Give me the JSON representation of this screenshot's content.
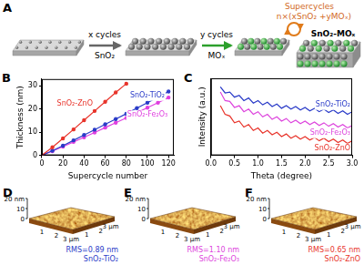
{
  "diagram": {
    "label": "A",
    "steps": [
      {
        "top": "x cycles",
        "bottom": "SnO₂"
      },
      {
        "top": "y cycles",
        "bottom": "MOₓ"
      }
    ],
    "loop": {
      "title": "Supercycles",
      "formula": "n×(xSnO₂ +yMOₓ)"
    },
    "product": "SnO₂-MOₓ"
  },
  "chart_data": [
    {
      "panel": "B",
      "type": "line",
      "x_label": "Supercycle number",
      "y_label": "Thickness (nm)",
      "xlim": [
        0,
        125
      ],
      "xticks": [
        0,
        20,
        40,
        60,
        80,
        100,
        120
      ],
      "ylim": [
        0,
        33
      ],
      "yticks": [
        0,
        10,
        20,
        30
      ],
      "grid": false,
      "series": [
        {
          "name": "SnO₂-ZnO",
          "color": "#e8342b",
          "marker": "circle",
          "x": [
            0,
            10,
            20,
            30,
            40,
            50,
            60,
            70,
            80
          ],
          "values": [
            0,
            3.5,
            7.3,
            11.2,
            15.2,
            19.2,
            23.2,
            27.2,
            31
          ]
        },
        {
          "name": "SnO₂-TiO₂",
          "color": "#2a3bc8",
          "marker": "circle",
          "x": [
            0,
            10,
            20,
            30,
            40,
            50,
            60,
            70,
            80,
            90,
            100,
            110,
            120
          ],
          "values": [
            0,
            2,
            4.2,
            6.5,
            8.8,
            11.1,
            13.4,
            15.7,
            18,
            20.4,
            22.8,
            25.2,
            27.6
          ]
        },
        {
          "name": "SnO₂-Fe₂O₃",
          "color": "#e040e0",
          "marker": "circle",
          "x": [
            0,
            10,
            20,
            30,
            40,
            50,
            60,
            70,
            80,
            90,
            100,
            110,
            120
          ],
          "values": [
            0,
            1.8,
            3.8,
            5.8,
            7.8,
            9.9,
            12,
            14.1,
            16.2,
            18.4,
            20.6,
            22.8,
            25
          ]
        }
      ]
    },
    {
      "panel": "C",
      "type": "line",
      "x_label": "Theta (degree)",
      "y_label": "Intensity (a.u.)",
      "x": [
        0.2,
        0.3,
        0.4,
        0.5,
        0.6,
        0.7,
        0.8,
        0.9,
        1.0,
        1.1,
        1.2,
        1.3,
        1.4,
        1.5,
        1.6,
        1.7,
        1.8,
        1.9,
        2.0,
        2.1,
        2.2,
        2.3,
        2.4,
        2.5,
        2.6,
        2.7,
        2.8,
        2.9,
        3.0
      ],
      "xlim": [
        0,
        3
      ],
      "xticks": [
        {
          "value": 0,
          "label": "0.0"
        },
        0.5,
        {
          "value": 1,
          "label": "1.0"
        },
        1.5,
        {
          "value": 2,
          "label": "2.0"
        },
        2.5,
        {
          "value": 3,
          "label": "3.0"
        }
      ],
      "ylim": [
        1,
        10
      ],
      "tick_labels": "x",
      "grid": false,
      "series": [
        {
          "name": "SnO₂-TiO₂",
          "color": "#2a3bc8",
          "values": [
            9.0,
            8.3,
            8.4,
            7.8,
            8.0,
            7.4,
            7.7,
            7.1,
            7.4,
            6.9,
            7.2,
            6.7,
            7.0,
            6.5,
            6.8,
            6.4,
            6.7,
            6.3,
            6.6,
            6.2,
            6.5,
            6.1,
            6.4,
            6.0,
            6.3,
            5.9,
            6.2,
            5.8,
            6.1
          ]
        },
        {
          "name": "SnO₂-Fe₂O₃",
          "color": "#dd44dd",
          "values": [
            8.4,
            7.4,
            7.3,
            6.6,
            6.8,
            6.1,
            6.4,
            5.8,
            6.1,
            5.5,
            5.8,
            5.2,
            5.5,
            5.0,
            5.3,
            4.8,
            5.1,
            4.7,
            5.0,
            4.6,
            4.9,
            4.5,
            4.8,
            4.4,
            4.7,
            4.3,
            4.6,
            4.2,
            4.5
          ]
        },
        {
          "name": "SnO₂-ZnO",
          "color": "#e8342b",
          "values": [
            6.8,
            5.8,
            5.6,
            4.8,
            5.0,
            4.3,
            4.6,
            3.9,
            4.2,
            3.6,
            3.9,
            3.4,
            3.7,
            3.2,
            3.5,
            3.0,
            3.3,
            2.9,
            3.2,
            2.8,
            3.1,
            2.7,
            3.0,
            2.6,
            2.9,
            2.5,
            2.8,
            2.4,
            2.7
          ]
        }
      ]
    }
  ],
  "afm": [
    {
      "label": "D",
      "z_ticks": [
        "20 nm",
        "10",
        "0"
      ],
      "x_ticks": [
        "1",
        "2",
        "3 μm"
      ],
      "y_ticks": [
        "1",
        "2",
        "3 μm"
      ],
      "rms": "RMS=0.89 nm",
      "name": "SnO₂-TiO₂",
      "color": "#2a3bc8"
    },
    {
      "label": "E",
      "z_ticks": [
        "20 nm",
        "10",
        "0"
      ],
      "x_ticks": [
        "1",
        "2",
        "3 μm"
      ],
      "y_ticks": [
        "1",
        "2",
        "3 μm"
      ],
      "rms": "RMS=1.10 nm",
      "name": "SnO₂-Fe₂O₃",
      "color": "#dd44dd"
    },
    {
      "label": "F",
      "z_ticks": [
        "20 nm",
        "10",
        "0"
      ],
      "x_ticks": [
        "1",
        "2",
        "3 μm"
      ],
      "y_ticks": [
        "1",
        "2",
        "3 μm"
      ],
      "rms": "RMS=0.65 nm",
      "name": "SnO₂-ZnO",
      "color": "#e8342b"
    }
  ]
}
